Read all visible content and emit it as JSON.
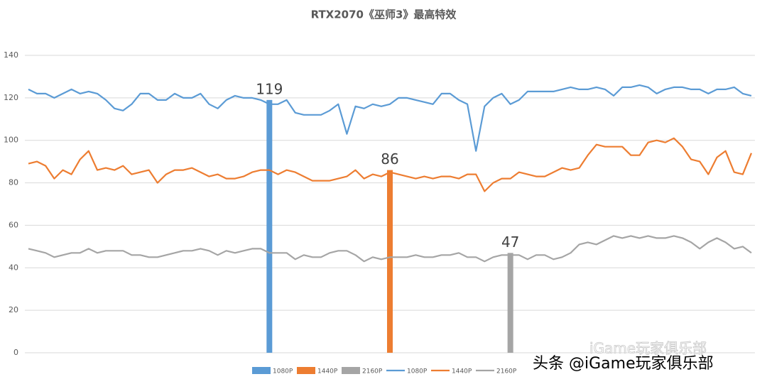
{
  "chart_data": {
    "type": "combo",
    "title": "RTX2070《巫师3》最高特效",
    "categories": [
      null,
      null,
      null,
      null,
      null,
      null,
      null,
      null,
      null,
      null,
      null,
      null,
      null,
      null,
      null,
      null,
      null,
      null,
      null,
      null,
      null,
      null,
      null,
      null,
      null,
      null,
      null,
      null,
      null,
      null,
      null,
      null,
      null,
      null,
      null,
      null,
      null,
      null,
      null,
      null,
      null,
      null,
      null,
      null,
      null,
      null,
      null,
      null,
      null,
      null,
      null,
      null,
      null,
      null,
      null,
      null,
      null,
      null,
      null,
      null,
      null,
      null,
      null,
      null,
      null,
      null,
      null,
      null,
      null,
      null,
      null,
      null,
      null,
      null,
      null,
      null,
      null,
      null,
      null,
      null,
      null,
      null,
      null,
      null,
      null
    ],
    "series": [
      {
        "name": "1080P",
        "type": "bar",
        "color": "#5b9bd5",
        "values": [
          null,
          null,
          null,
          null,
          null,
          null,
          null,
          null,
          null,
          null,
          null,
          null,
          null,
          null,
          null,
          null,
          null,
          null,
          null,
          null,
          null,
          null,
          null,
          null,
          null,
          null,
          null,
          null,
          119,
          null,
          null,
          null,
          null,
          null,
          null,
          null,
          null,
          null,
          null,
          null,
          null,
          null,
          null,
          null,
          null,
          null,
          null,
          null,
          null,
          null,
          null,
          null,
          null,
          null,
          null,
          null,
          null,
          null,
          null,
          null,
          null,
          null,
          null,
          null,
          null,
          null,
          null,
          null,
          null,
          null,
          null,
          null,
          null,
          null,
          null,
          null,
          null,
          null,
          null,
          null,
          null,
          null,
          null,
          null,
          null
        ]
      },
      {
        "name": "1440P",
        "type": "bar",
        "color": "#ed7d31",
        "values": [
          null,
          null,
          null,
          null,
          null,
          null,
          null,
          null,
          null,
          null,
          null,
          null,
          null,
          null,
          null,
          null,
          null,
          null,
          null,
          null,
          null,
          null,
          null,
          null,
          null,
          null,
          null,
          null,
          null,
          null,
          null,
          null,
          null,
          null,
          null,
          null,
          null,
          null,
          null,
          null,
          null,
          null,
          86,
          null,
          null,
          null,
          null,
          null,
          null,
          null,
          null,
          null,
          null,
          null,
          null,
          null,
          null,
          null,
          null,
          null,
          null,
          null,
          null,
          null,
          null,
          null,
          null,
          null,
          null,
          null,
          null,
          null,
          null,
          null,
          null,
          null,
          null,
          null,
          null,
          null,
          null,
          null,
          null,
          null,
          null
        ]
      },
      {
        "name": "2160P",
        "type": "bar",
        "color": "#a5a5a5",
        "values": [
          null,
          null,
          null,
          null,
          null,
          null,
          null,
          null,
          null,
          null,
          null,
          null,
          null,
          null,
          null,
          null,
          null,
          null,
          null,
          null,
          null,
          null,
          null,
          null,
          null,
          null,
          null,
          null,
          null,
          null,
          null,
          null,
          null,
          null,
          null,
          null,
          null,
          null,
          null,
          null,
          null,
          null,
          null,
          null,
          null,
          null,
          null,
          null,
          null,
          null,
          null,
          null,
          null,
          null,
          null,
          null,
          47,
          null,
          null,
          null,
          null,
          null,
          null,
          null,
          null,
          null,
          null,
          null,
          null,
          null,
          null,
          null,
          null,
          null,
          null,
          null,
          null,
          null,
          null,
          null,
          null,
          null,
          null,
          null,
          null
        ]
      },
      {
        "name": "1080P",
        "type": "line",
        "color": "#5b9bd5",
        "values": [
          124,
          122,
          122,
          120,
          122,
          124,
          122,
          123,
          122,
          119,
          115,
          114,
          117,
          122,
          122,
          119,
          119,
          122,
          120,
          120,
          122,
          117,
          115,
          119,
          121,
          120,
          120,
          119,
          117,
          117,
          119,
          113,
          112,
          112,
          112,
          114,
          117,
          103,
          116,
          115,
          117,
          116,
          117,
          120,
          120,
          119,
          118,
          117,
          122,
          122,
          119,
          117,
          95,
          116,
          120,
          122,
          117,
          119,
          123,
          123,
          123,
          123,
          124,
          125,
          124,
          124,
          125,
          124,
          121,
          125,
          125,
          126,
          125,
          122,
          124,
          125,
          125,
          124,
          124,
          122,
          124,
          124,
          125,
          122,
          121
        ]
      },
      {
        "name": "1440P",
        "type": "line",
        "color": "#ed7d31",
        "values": [
          89,
          90,
          88,
          82,
          86,
          84,
          91,
          95,
          86,
          87,
          86,
          88,
          84,
          85,
          86,
          80,
          84,
          86,
          86,
          87,
          85,
          83,
          84,
          82,
          82,
          83,
          85,
          86,
          86,
          84,
          86,
          85,
          83,
          81,
          81,
          81,
          82,
          83,
          86,
          82,
          84,
          83,
          85,
          84,
          83,
          82,
          83,
          82,
          83,
          83,
          82,
          84,
          84,
          76,
          80,
          82,
          82,
          85,
          84,
          83,
          83,
          85,
          87,
          86,
          87,
          93,
          98,
          97,
          97,
          97,
          93,
          93,
          99,
          100,
          99,
          101,
          97,
          91,
          90,
          84,
          92,
          95,
          85,
          84,
          94
        ]
      },
      {
        "name": "2160P",
        "type": "line",
        "color": "#a5a5a5",
        "values": [
          49,
          48,
          47,
          45,
          46,
          47,
          47,
          49,
          47,
          48,
          48,
          48,
          46,
          46,
          45,
          45,
          46,
          47,
          48,
          48,
          49,
          48,
          46,
          48,
          47,
          48,
          49,
          49,
          47,
          47,
          47,
          44,
          46,
          45,
          45,
          47,
          48,
          48,
          46,
          43,
          45,
          44,
          45,
          45,
          45,
          46,
          45,
          45,
          46,
          46,
          47,
          45,
          45,
          43,
          45,
          46,
          46,
          46,
          44,
          46,
          46,
          44,
          45,
          47,
          51,
          52,
          51,
          53,
          55,
          54,
          55,
          54,
          55,
          54,
          54,
          55,
          54,
          52,
          49,
          52,
          54,
          52,
          49,
          50,
          47
        ]
      }
    ],
    "ylim": [
      0,
      140
    ],
    "yticks": [
      0,
      20,
      40,
      60,
      80,
      100,
      120,
      140
    ],
    "grid": true,
    "legend": "bottom",
    "watermarks": [
      "iGame玩家俱乐部",
      "头条 @iGame玩家俱乐部"
    ]
  }
}
